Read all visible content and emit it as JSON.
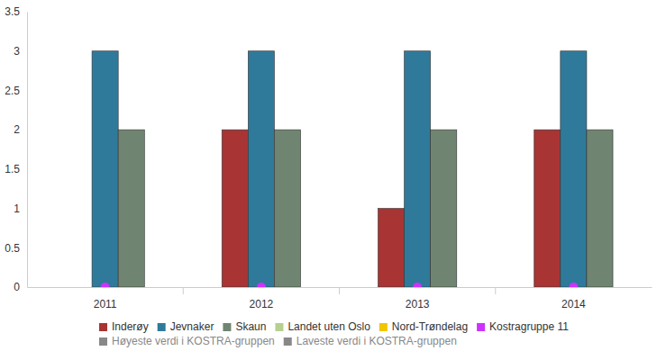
{
  "chart_data": {
    "type": "bar",
    "categories": [
      "2011",
      "2012",
      "2013",
      "2014"
    ],
    "series": [
      {
        "name": "Inderøy",
        "color": "#a83434",
        "type": "bar",
        "values": [
          null,
          2,
          1,
          2
        ]
      },
      {
        "name": "Jevnaker",
        "color": "#2f7a9a",
        "type": "bar",
        "values": [
          3,
          3,
          3,
          3
        ]
      },
      {
        "name": "Skaun",
        "color": "#6f8571",
        "type": "bar",
        "values": [
          2,
          2,
          2,
          2
        ]
      },
      {
        "name": "Landet uten Oslo",
        "color": "#b6d08f",
        "type": "bar",
        "values": [
          null,
          null,
          null,
          null
        ]
      },
      {
        "name": "Nord-Trøndelag",
        "color": "#f2c500",
        "type": "bar",
        "values": [
          null,
          null,
          null,
          null
        ]
      },
      {
        "name": "Kostragruppe 11",
        "color": "#cc33ff",
        "type": "scatter",
        "marker": "circle",
        "values": [
          0,
          0,
          0,
          0
        ]
      },
      {
        "name": "Høyeste verdi i KOSTRA-gruppen",
        "color": "#888888",
        "type": "line",
        "values": [
          null,
          null,
          null,
          null
        ]
      },
      {
        "name": "Laveste verdi i KOSTRA-gruppen",
        "color": "#888888",
        "type": "line",
        "values": [
          null,
          null,
          null,
          null
        ]
      }
    ],
    "ylim": [
      0,
      3.5
    ],
    "yticks": [
      0,
      0.5,
      1,
      1.5,
      2,
      2.5,
      3,
      3.5
    ],
    "grid": false,
    "legend": "bottom"
  }
}
